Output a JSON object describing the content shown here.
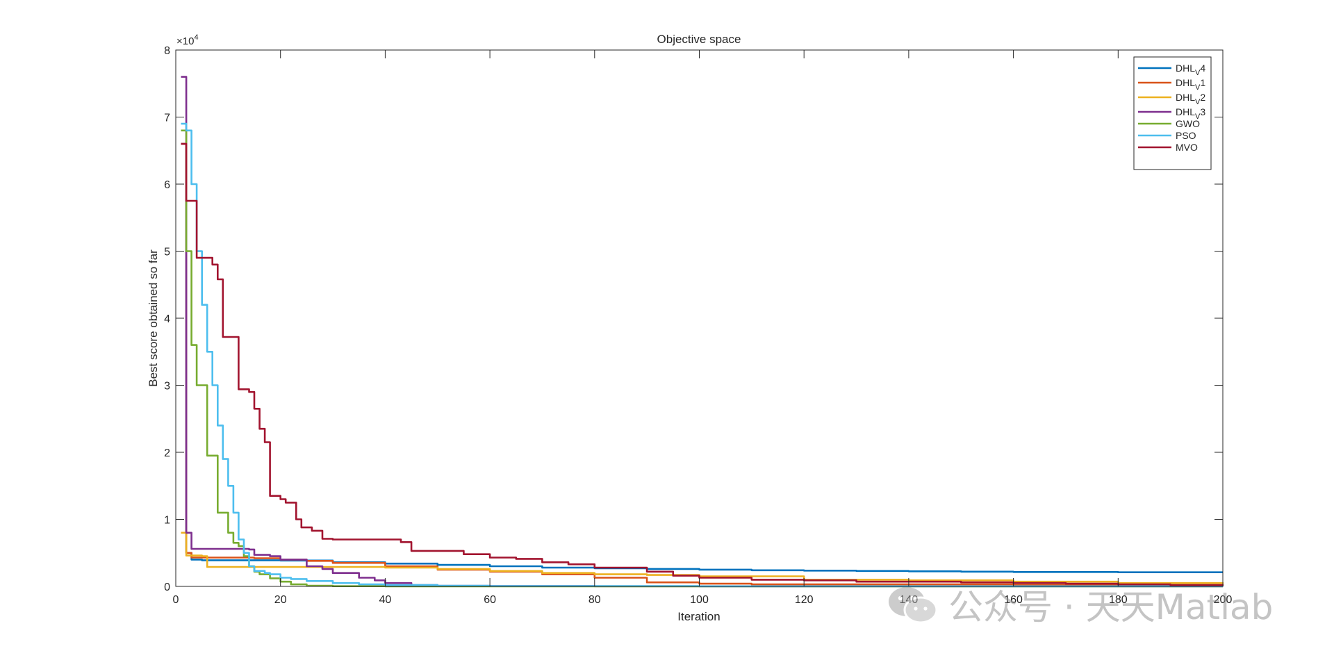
{
  "chart_data": {
    "type": "line",
    "title": "Objective space",
    "xlabel": "Iteration",
    "ylabel": "Best score obtained so far",
    "exponent_label": "×10",
    "exponent_power": "4",
    "xlim": [
      0,
      200
    ],
    "ylim": [
      0,
      80000
    ],
    "x_ticks": [
      "0",
      "20",
      "40",
      "60",
      "80",
      "100",
      "120",
      "140",
      "160",
      "180",
      "200"
    ],
    "y_ticks": [
      "0",
      "1",
      "2",
      "3",
      "4",
      "5",
      "6",
      "7",
      "8"
    ],
    "grid": false,
    "legend_position": "top-right",
    "series": [
      {
        "name": "DHL_V4",
        "label_main": "DHL",
        "label_sub": "V",
        "label_tail": "4",
        "color": "#0072BD",
        "x": [
          1,
          2,
          3,
          5,
          10,
          20,
          30,
          40,
          50,
          60,
          70,
          80,
          90,
          100,
          110,
          120,
          130,
          140,
          150,
          160,
          170,
          180,
          190,
          200
        ],
        "y": [
          66000,
          5000,
          4000,
          3900,
          3900,
          3850,
          3600,
          3400,
          3200,
          3000,
          2800,
          2700,
          2600,
          2500,
          2400,
          2350,
          2300,
          2250,
          2200,
          2150,
          2150,
          2100,
          2100,
          2100
        ]
      },
      {
        "name": "DHL_V1",
        "label_main": "DHL",
        "label_sub": "V",
        "label_tail": "1",
        "color": "#D95319",
        "x": [
          1,
          2,
          3,
          10,
          15,
          20,
          25,
          30,
          40,
          50,
          60,
          70,
          80,
          90,
          100,
          110,
          120,
          140,
          160,
          180,
          200
        ],
        "y": [
          66000,
          5000,
          4300,
          4300,
          4200,
          4000,
          3800,
          3500,
          3000,
          2500,
          2200,
          1800,
          1300,
          600,
          400,
          300,
          300,
          300,
          200,
          200,
          200
        ]
      },
      {
        "name": "DHL_V2",
        "label_main": "DHL",
        "label_sub": "V",
        "label_tail": "2",
        "color": "#EDB120",
        "x": [
          1,
          2,
          3,
          5,
          6,
          10,
          20,
          30,
          40,
          50,
          60,
          70,
          80,
          90,
          100,
          120,
          140,
          160,
          180,
          200
        ],
        "y": [
          8000,
          4600,
          4600,
          4500,
          2900,
          2900,
          2900,
          2900,
          2800,
          2600,
          2300,
          2000,
          1800,
          1700,
          1500,
          1000,
          900,
          700,
          500,
          400
        ]
      },
      {
        "name": "DHL_V3",
        "label_main": "DHL",
        "label_sub": "V",
        "label_tail": "3",
        "color": "#7E2F8E",
        "x": [
          1,
          2,
          3,
          10,
          14,
          15,
          18,
          20,
          25,
          28,
          30,
          35,
          38,
          40,
          45,
          50,
          60,
          80,
          100,
          200
        ],
        "y": [
          76000,
          8000,
          5600,
          5600,
          5500,
          4700,
          4500,
          4000,
          3000,
          2600,
          2000,
          1300,
          900,
          500,
          200,
          80,
          40,
          20,
          10,
          5
        ]
      },
      {
        "name": "GWO",
        "label_main": "GWO",
        "label_sub": "",
        "label_tail": "",
        "color": "#77AC30",
        "x": [
          1,
          2,
          3,
          4,
          5,
          6,
          7,
          8,
          9,
          10,
          11,
          12,
          13,
          14,
          15,
          16,
          18,
          20,
          22,
          25,
          30,
          40,
          60,
          100,
          200
        ],
        "y": [
          68000,
          50000,
          36000,
          30000,
          30000,
          19500,
          19500,
          11000,
          11000,
          8000,
          6500,
          6000,
          4500,
          3000,
          2200,
          1800,
          1200,
          700,
          300,
          100,
          30,
          10,
          5,
          3,
          2
        ]
      },
      {
        "name": "PSO",
        "label_main": "PSO",
        "label_sub": "",
        "label_tail": "",
        "color": "#4DBEEE",
        "x": [
          1,
          2,
          3,
          4,
          5,
          6,
          7,
          8,
          9,
          10,
          11,
          12,
          13,
          14,
          15,
          17,
          18,
          20,
          22,
          25,
          30,
          35,
          40,
          50,
          60,
          100,
          200
        ],
        "y": [
          69000,
          68000,
          60000,
          50000,
          42000,
          35000,
          30000,
          24000,
          19000,
          15000,
          11000,
          7000,
          5000,
          3000,
          2300,
          2000,
          1800,
          1300,
          1100,
          800,
          500,
          300,
          200,
          100,
          50,
          20,
          10
        ]
      },
      {
        "name": "MVO",
        "label_main": "MVO",
        "label_sub": "",
        "label_tail": "",
        "color": "#A2142F",
        "x": [
          1,
          2,
          3,
          4,
          5,
          6,
          7,
          8,
          9,
          10,
          11,
          12,
          13,
          14,
          15,
          16,
          17,
          18,
          19,
          20,
          21,
          22,
          23,
          24,
          25,
          26,
          27,
          28,
          30,
          35,
          40,
          43,
          45,
          50,
          55,
          60,
          65,
          70,
          75,
          80,
          90,
          95,
          100,
          110,
          120,
          130,
          140,
          150,
          160,
          170,
          180,
          190,
          200
        ],
        "y": [
          66000,
          57500,
          57500,
          49000,
          49000,
          49000,
          48000,
          45800,
          37200,
          37200,
          37200,
          29400,
          29400,
          29000,
          26500,
          23500,
          21500,
          13500,
          13500,
          13000,
          12500,
          12500,
          10000,
          8800,
          8800,
          8300,
          8300,
          7100,
          7000,
          7000,
          7000,
          6600,
          5300,
          5300,
          4800,
          4300,
          4100,
          3600,
          3300,
          2800,
          2200,
          1600,
          1300,
          1000,
          900,
          700,
          700,
          600,
          500,
          400,
          300,
          200,
          150
        ]
      }
    ]
  },
  "watermark": {
    "text": "公众号 · 天天Matlab",
    "icon": "wechat-icon"
  }
}
